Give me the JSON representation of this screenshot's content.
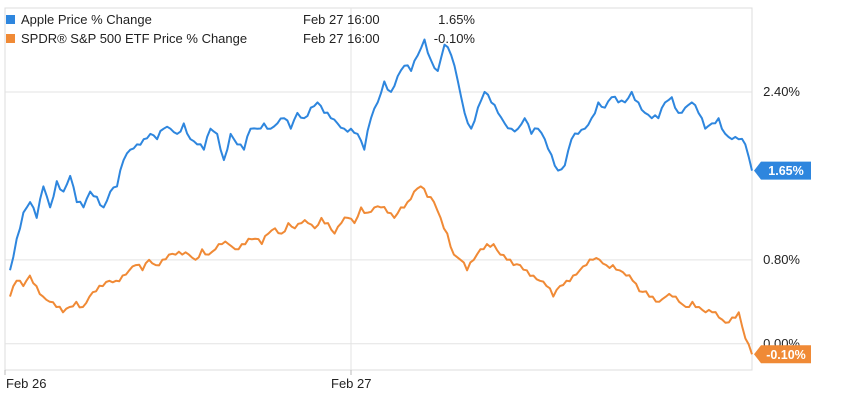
{
  "chart_data": {
    "type": "line",
    "x_tick_labels": [
      "Feb 26",
      "Feb 27"
    ],
    "y_tick_labels": [
      "2.40%",
      "0.80%",
      "0.00%"
    ],
    "y_ticks": [
      2.4,
      0.8,
      0.0
    ],
    "ylim": [
      -0.25,
      3.2
    ],
    "grid": true,
    "legend_placement": "top-left",
    "series": [
      {
        "name": "Apple Price % Change",
        "legend_date": "Feb 27 16:00",
        "last_label": "1.65%",
        "legend_value": "1.65%",
        "last_value": 1.65,
        "color": "#2e86de",
        "values": [
          0.7,
          1.0,
          1.25,
          1.35,
          1.2,
          1.5,
          1.3,
          1.55,
          1.45,
          1.6,
          1.35,
          1.3,
          1.45,
          1.4,
          1.3,
          1.45,
          1.5,
          1.75,
          1.85,
          1.9,
          1.95,
          2.0,
          1.95,
          2.05,
          2.05,
          2.0,
          2.1,
          1.95,
          1.9,
          1.85,
          2.05,
          2.0,
          1.75,
          2.0,
          1.9,
          1.85,
          2.05,
          2.05,
          2.1,
          2.05,
          2.1,
          2.15,
          2.05,
          2.2,
          2.15,
          2.25,
          2.3,
          2.2,
          2.15,
          2.1,
          2.05,
          2.05,
          2.0,
          1.85,
          2.15,
          2.3,
          2.5,
          2.4,
          2.55,
          2.65,
          2.6,
          2.75,
          2.9,
          2.7,
          2.6,
          2.85,
          2.75,
          2.5,
          2.2,
          2.05,
          2.25,
          2.4,
          2.3,
          2.2,
          2.1,
          2.05,
          2.05,
          2.15,
          2.0,
          2.05,
          1.95,
          1.8,
          1.65,
          1.7,
          1.95,
          2.0,
          2.05,
          2.15,
          2.3,
          2.25,
          2.35,
          2.3,
          2.3,
          2.4,
          2.3,
          2.2,
          2.15,
          2.15,
          2.3,
          2.35,
          2.2,
          2.25,
          2.3,
          2.2,
          2.05,
          2.1,
          2.15,
          2.0,
          1.95,
          1.95,
          1.9,
          1.65
        ]
      },
      {
        "name": "SPDR® S&P 500 ETF Price % Change",
        "legend_date": "Feb 27 16:00",
        "last_label": "-0.10%",
        "legend_value": "-0.10%",
        "last_value": -0.1,
        "color": "#f08a36",
        "values": [
          0.45,
          0.6,
          0.55,
          0.65,
          0.55,
          0.45,
          0.4,
          0.35,
          0.3,
          0.35,
          0.4,
          0.35,
          0.45,
          0.5,
          0.55,
          0.6,
          0.6,
          0.65,
          0.7,
          0.75,
          0.7,
          0.8,
          0.75,
          0.8,
          0.85,
          0.85,
          0.85,
          0.85,
          0.8,
          0.9,
          0.85,
          0.9,
          0.95,
          0.95,
          0.9,
          0.95,
          1.0,
          1.0,
          0.95,
          1.05,
          1.1,
          1.05,
          1.15,
          1.1,
          1.15,
          1.15,
          1.1,
          1.2,
          1.15,
          1.05,
          1.15,
          1.2,
          1.15,
          1.3,
          1.25,
          1.3,
          1.3,
          1.25,
          1.2,
          1.3,
          1.35,
          1.45,
          1.5,
          1.4,
          1.35,
          1.2,
          1.05,
          0.85,
          0.8,
          0.7,
          0.8,
          0.9,
          0.95,
          0.95,
          0.85,
          0.8,
          0.75,
          0.75,
          0.7,
          0.65,
          0.6,
          0.55,
          0.45,
          0.55,
          0.6,
          0.65,
          0.7,
          0.75,
          0.8,
          0.8,
          0.75,
          0.75,
          0.7,
          0.65,
          0.6,
          0.5,
          0.5,
          0.45,
          0.4,
          0.45,
          0.45,
          0.4,
          0.35,
          0.4,
          0.35,
          0.3,
          0.3,
          0.25,
          0.2,
          0.25,
          0.3,
          0.05,
          -0.1
        ]
      }
    ]
  }
}
